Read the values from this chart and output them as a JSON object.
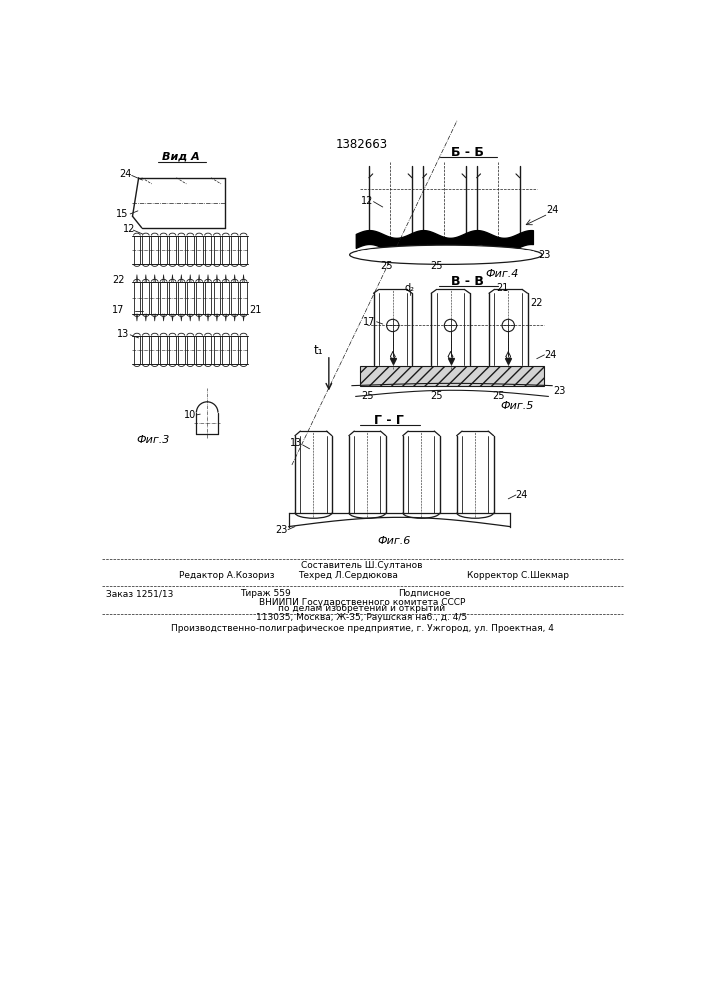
{
  "title": "1382663",
  "bg_color": "#ffffff",
  "line_color": "#1a1a1a",
  "fig_width": 7.07,
  "fig_height": 10.0,
  "labels": {
    "vid_A": "Вид А",
    "B_B": "Б - Б",
    "V_V": "В - В",
    "G_G": "Г - Г",
    "fig3": "Фиг.3",
    "fig4": "Фиг.4",
    "fig5": "Фиг.5",
    "fig6": "Фиг.6"
  },
  "footer": {
    "line1": "Составитель Ш.Султанов",
    "line2_left": "Редактор А.Козориз",
    "line2_mid": "Техред Л.Сердюкова",
    "line2_right": "Корректор С.Шекмар",
    "line3_left": "Заказ 1251/13",
    "line3_mid": "Тираж 559",
    "line3_right": "Подписное",
    "line4": "ВНИИПИ Государственного комитета СССР",
    "line5": "по делам изобретений и открытий",
    "line6": "113035, Москва, Ж-35, Раушская наб., д. 4/5",
    "line7": "Производственно-полиграфическое предприятие, г. Ужгород, ул. Проектная, 4"
  }
}
